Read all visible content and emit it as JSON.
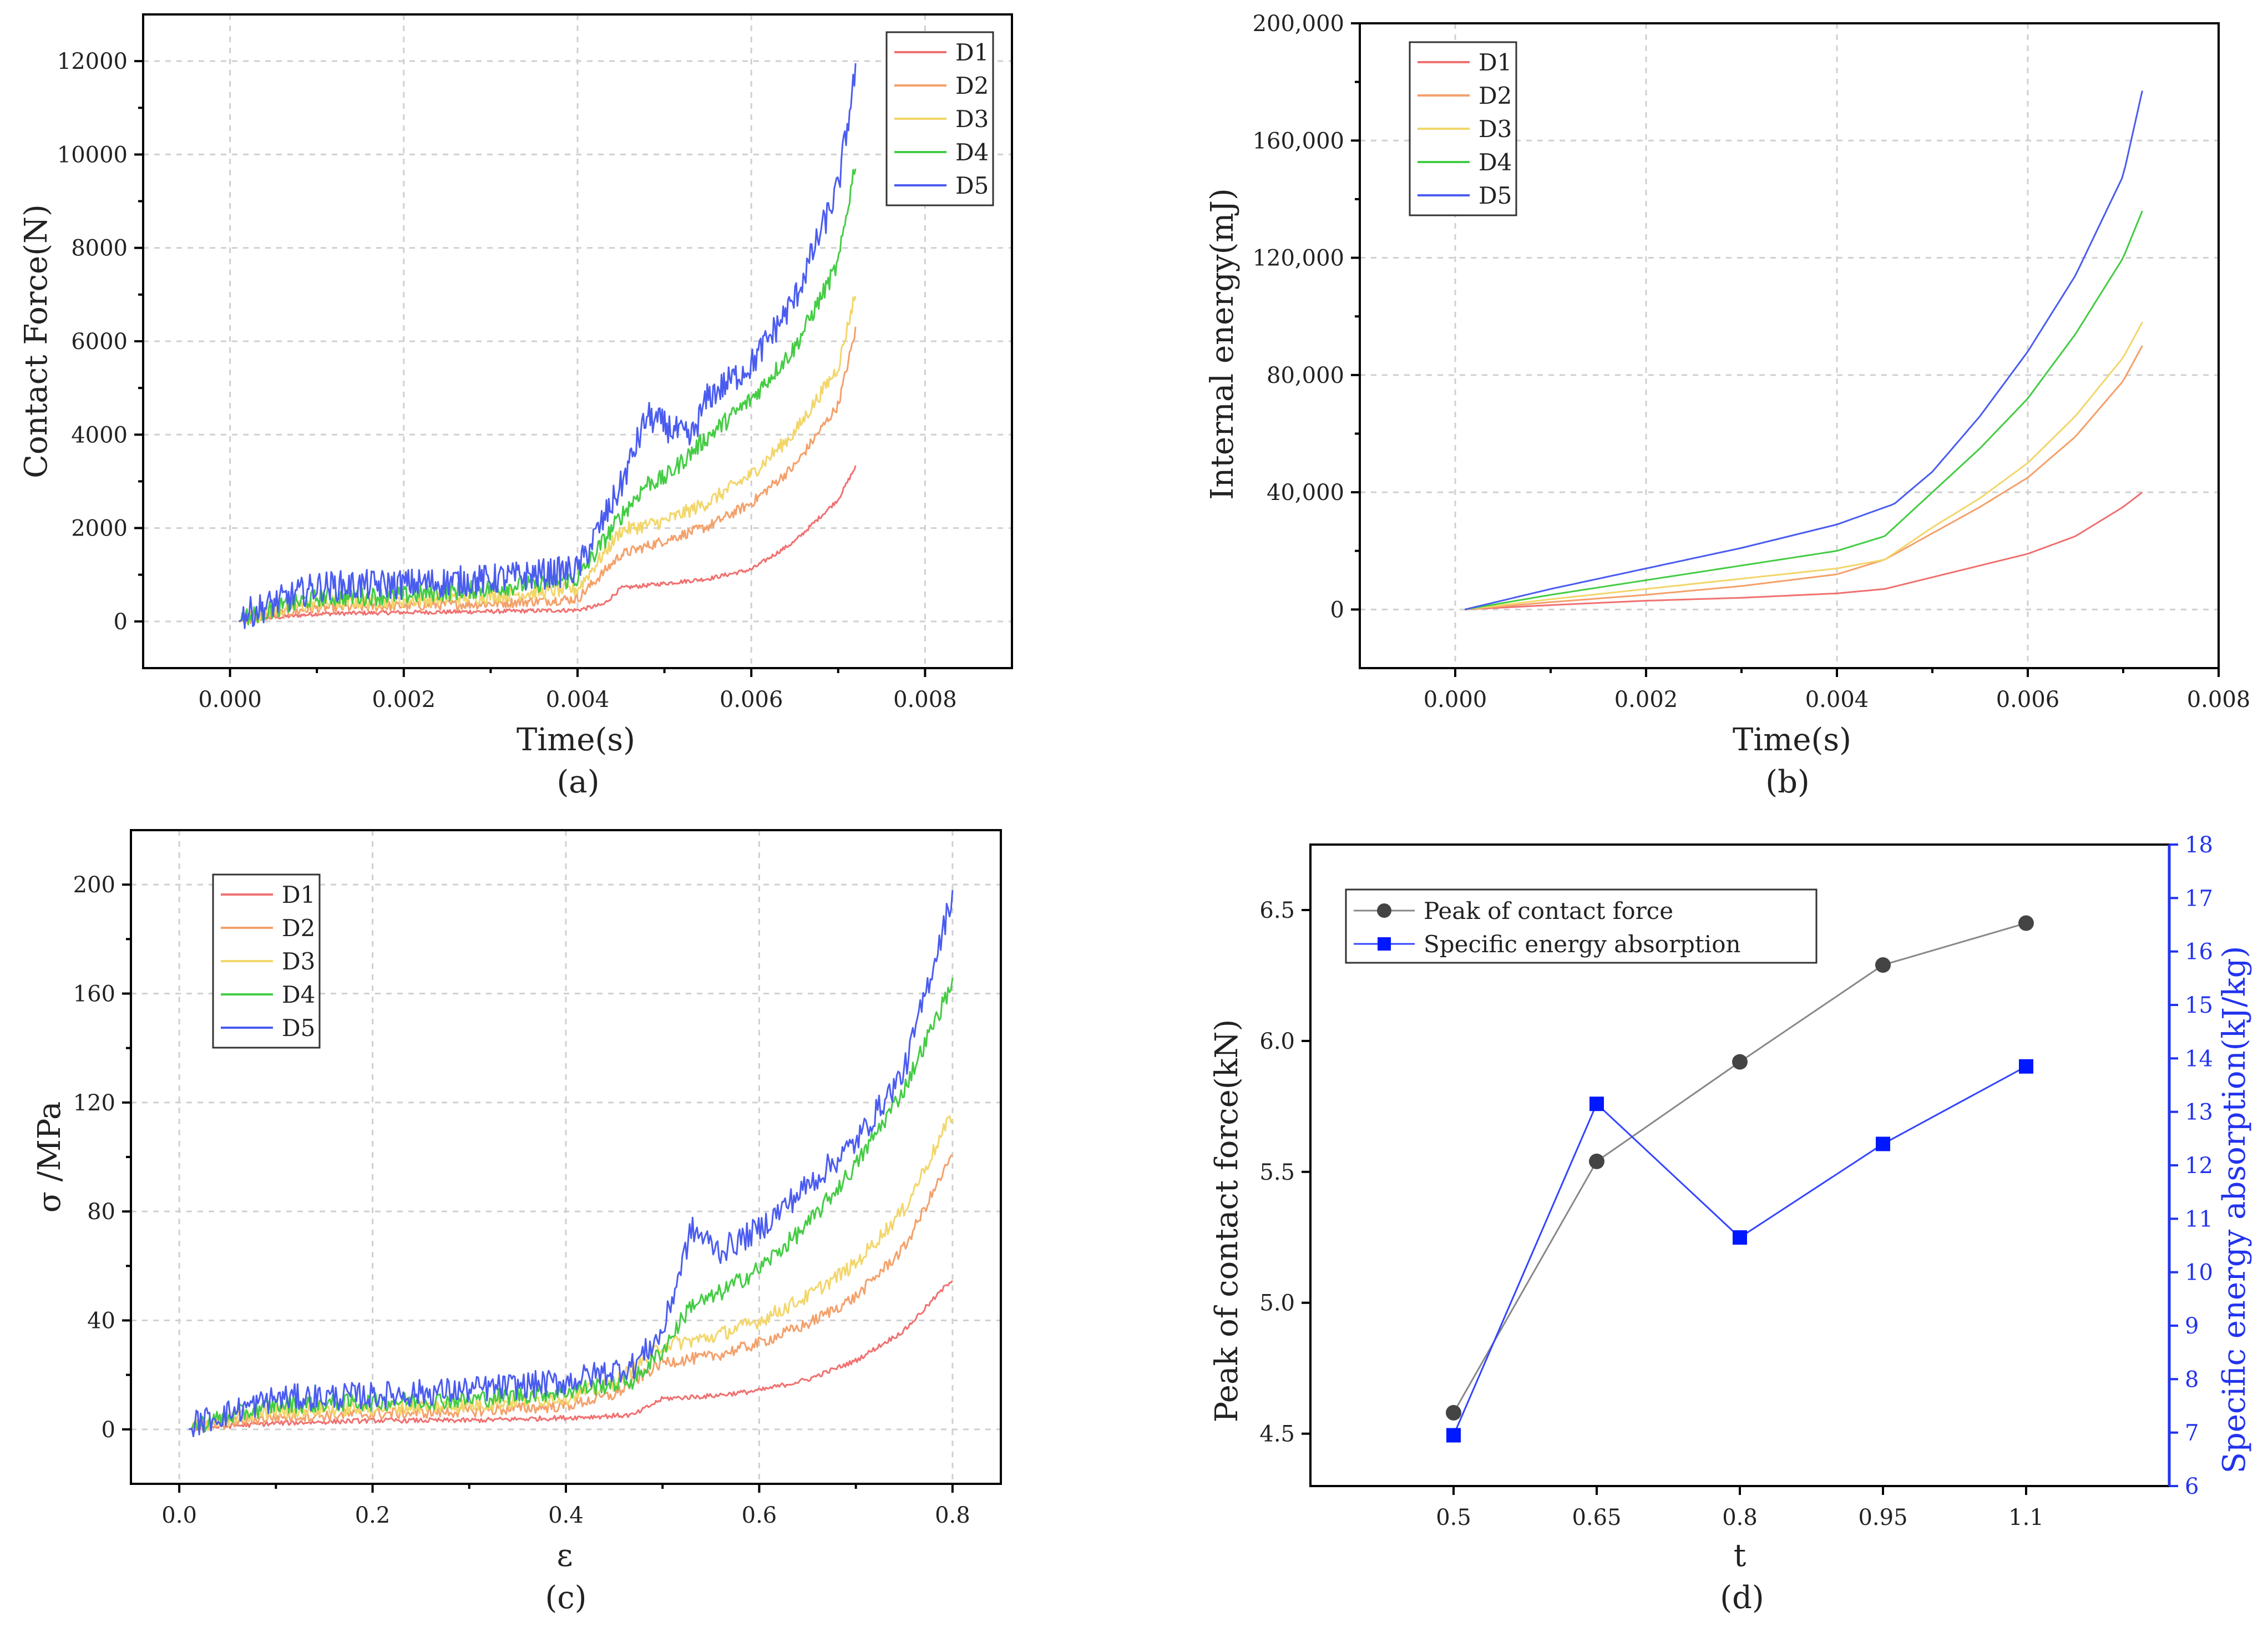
{
  "chart_data": [
    {
      "id": "a",
      "type": "line",
      "caption": "(a)",
      "xlabel": "Time(s)",
      "ylabel": "Contact Force(N)",
      "xlim": [
        -0.001,
        0.009
      ],
      "ylim": [
        -1000,
        13000
      ],
      "xticks": [
        0.0,
        0.002,
        0.004,
        0.006,
        0.008
      ],
      "xtick_labels": [
        "0.000",
        "0.002",
        "0.004",
        "0.006",
        "0.008"
      ],
      "yticks": [
        0,
        2000,
        4000,
        6000,
        8000,
        10000,
        12000
      ],
      "ytick_labels": [
        "0",
        "2000",
        "4000",
        "6000",
        "8000",
        "10000",
        "12000"
      ],
      "legend_position": "top-right",
      "series": [
        {
          "name": "D1",
          "color": "#f07070",
          "x": [
            0.0001,
            0.001,
            0.002,
            0.003,
            0.004,
            0.0043,
            0.0045,
            0.005,
            0.0055,
            0.006,
            0.0065,
            0.007,
            0.0072
          ],
          "y": [
            0,
            150,
            180,
            200,
            230,
            350,
            700,
            800,
            900,
            1100,
            1700,
            2600,
            3300
          ],
          "noise": 40
        },
        {
          "name": "D2",
          "color": "#f4a06a",
          "x": [
            0.0001,
            0.001,
            0.002,
            0.003,
            0.004,
            0.0045,
            0.005,
            0.0055,
            0.006,
            0.0065,
            0.007,
            0.0072
          ],
          "y": [
            0,
            250,
            300,
            350,
            450,
            1400,
            1700,
            2000,
            2500,
            3300,
            4600,
            6200
          ],
          "noise": 100
        },
        {
          "name": "D3",
          "color": "#f2d66a",
          "x": [
            0.0001,
            0.001,
            0.002,
            0.003,
            0.004,
            0.0045,
            0.005,
            0.0055,
            0.006,
            0.0065,
            0.007,
            0.0072
          ],
          "y": [
            0,
            350,
            400,
            500,
            650,
            1900,
            2100,
            2500,
            3100,
            4000,
            5400,
            7000
          ],
          "noise": 140
        },
        {
          "name": "D4",
          "color": "#44cc44",
          "x": [
            0.0001,
            0.001,
            0.002,
            0.003,
            0.004,
            0.0045,
            0.0048,
            0.005,
            0.0055,
            0.006,
            0.0065,
            0.007,
            0.0072
          ],
          "y": [
            0,
            450,
            500,
            650,
            850,
            2200,
            2900,
            3000,
            3900,
            4700,
            5800,
            7600,
            9800
          ],
          "noise": 180
        },
        {
          "name": "D5",
          "color": "#4a5cf0",
          "x": [
            0.0001,
            0.001,
            0.002,
            0.003,
            0.004,
            0.0045,
            0.0048,
            0.005,
            0.0053,
            0.0055,
            0.006,
            0.0065,
            0.007,
            0.0072
          ],
          "y": [
            0,
            650,
            700,
            800,
            1000,
            2800,
            4300,
            4100,
            3800,
            4700,
            5400,
            6800,
            9200,
            11700
          ],
          "noise": 300
        }
      ]
    },
    {
      "id": "b",
      "type": "line",
      "caption": "(b)",
      "xlabel": "Time(s)",
      "ylabel": "Internal energy(mJ)",
      "xlim": [
        -0.001,
        0.008
      ],
      "ylim": [
        -20000,
        200000
      ],
      "xticks": [
        0.0,
        0.002,
        0.004,
        0.006,
        0.008
      ],
      "xtick_labels": [
        "0.000",
        "0.002",
        "0.004",
        "0.006",
        "0.008"
      ],
      "yticks": [
        0,
        40000,
        80000,
        120000,
        160000,
        200000
      ],
      "ytick_labels": [
        "0",
        "40,000",
        "80,000",
        "120,000",
        "160,000",
        "200,000"
      ],
      "legend_position": "top-left",
      "series": [
        {
          "name": "D1",
          "color": "#f07070",
          "x": [
            0.0001,
            0.001,
            0.002,
            0.003,
            0.004,
            0.0045,
            0.005,
            0.0055,
            0.006,
            0.0065,
            0.007,
            0.0072
          ],
          "y": [
            0,
            1500,
            3000,
            4000,
            5500,
            7000,
            11000,
            15000,
            19000,
            25000,
            35000,
            40000
          ]
        },
        {
          "name": "D2",
          "color": "#f4a06a",
          "x": [
            0.0001,
            0.001,
            0.002,
            0.003,
            0.004,
            0.0045,
            0.005,
            0.0055,
            0.006,
            0.0065,
            0.007,
            0.0072
          ],
          "y": [
            0,
            2500,
            5000,
            8000,
            12000,
            17000,
            26000,
            35000,
            45000,
            59000,
            78000,
            90000
          ]
        },
        {
          "name": "D3",
          "color": "#f2d66a",
          "x": [
            0.0001,
            0.001,
            0.002,
            0.003,
            0.004,
            0.0045,
            0.005,
            0.0055,
            0.006,
            0.0065,
            0.007,
            0.0072
          ],
          "y": [
            0,
            3500,
            7000,
            10500,
            14000,
            17000,
            28000,
            38000,
            50000,
            66000,
            86000,
            98000
          ]
        },
        {
          "name": "D4",
          "color": "#44cc44",
          "x": [
            0.0001,
            0.001,
            0.002,
            0.003,
            0.004,
            0.0045,
            0.005,
            0.0055,
            0.006,
            0.0065,
            0.007,
            0.0072
          ],
          "y": [
            0,
            5000,
            10000,
            15000,
            20000,
            25000,
            40000,
            55000,
            72000,
            94000,
            120000,
            136000
          ]
        },
        {
          "name": "D5",
          "color": "#4a5cf0",
          "x": [
            0.0001,
            0.001,
            0.002,
            0.003,
            0.004,
            0.0046,
            0.005,
            0.0055,
            0.006,
            0.0065,
            0.007,
            0.0072
          ],
          "y": [
            0,
            7000,
            14000,
            21000,
            29000,
            36000,
            47000,
            66000,
            88000,
            114000,
            148000,
            177000
          ]
        }
      ]
    },
    {
      "id": "c",
      "type": "line",
      "caption": "(c)",
      "xlabel": "ε",
      "ylabel": "σ /MPa",
      "xlim": [
        -0.05,
        0.85
      ],
      "ylim": [
        -20,
        220
      ],
      "xticks": [
        0.0,
        0.2,
        0.4,
        0.6,
        0.8
      ],
      "xtick_labels": [
        "0.0",
        "0.2",
        "0.4",
        "0.6",
        "0.8"
      ],
      "yticks": [
        0,
        40,
        80,
        120,
        160,
        200
      ],
      "ytick_labels": [
        "0",
        "40",
        "80",
        "120",
        "160",
        "200"
      ],
      "legend_position": "top-left",
      "series": [
        {
          "name": "D1",
          "color": "#f07070",
          "x": [
            0.01,
            0.1,
            0.2,
            0.3,
            0.4,
            0.47,
            0.5,
            0.55,
            0.6,
            0.65,
            0.7,
            0.75,
            0.8
          ],
          "y": [
            0,
            2,
            3,
            3,
            4,
            5,
            11,
            12,
            14,
            18,
            25,
            36,
            55
          ],
          "noise": 0.8
        },
        {
          "name": "D2",
          "color": "#f4a06a",
          "x": [
            0.01,
            0.1,
            0.2,
            0.3,
            0.4,
            0.45,
            0.5,
            0.55,
            0.6,
            0.65,
            0.7,
            0.75,
            0.8
          ],
          "y": [
            0,
            4,
            5,
            6,
            8,
            12,
            24,
            26,
            31,
            38,
            48,
            66,
            100
          ],
          "noise": 2
        },
        {
          "name": "D3",
          "color": "#f2d66a",
          "x": [
            0.01,
            0.1,
            0.2,
            0.3,
            0.4,
            0.45,
            0.5,
            0.55,
            0.6,
            0.65,
            0.7,
            0.75,
            0.8
          ],
          "y": [
            0,
            6,
            7,
            8,
            11,
            16,
            30,
            33,
            39,
            48,
            60,
            80,
            115
          ],
          "noise": 2.5
        },
        {
          "name": "D4",
          "color": "#44cc44",
          "x": [
            0.01,
            0.1,
            0.2,
            0.3,
            0.4,
            0.47,
            0.5,
            0.53,
            0.55,
            0.6,
            0.65,
            0.7,
            0.75,
            0.8
          ],
          "y": [
            0,
            8,
            9,
            10,
            13,
            17,
            28,
            45,
            47,
            58,
            74,
            96,
            124,
            163
          ],
          "noise": 3
        },
        {
          "name": "D5",
          "color": "#4a5cf0",
          "x": [
            0.01,
            0.1,
            0.2,
            0.3,
            0.4,
            0.47,
            0.5,
            0.53,
            0.56,
            0.6,
            0.65,
            0.7,
            0.75,
            0.8
          ],
          "y": [
            0,
            10,
            11,
            13,
            16,
            22,
            34,
            72,
            64,
            72,
            88,
            104,
            130,
            195
          ],
          "noise": 4.5
        }
      ]
    },
    {
      "id": "d",
      "type": "line",
      "caption": "(d)",
      "xlabel": "t",
      "ylabel": "Peak of contact force(kN)",
      "ylabel_right": "Specific energy absorption(kJ/kg)",
      "xcategories": [
        "0.5",
        "0.65",
        "0.8",
        "0.95",
        "1.1"
      ],
      "ylim": [
        4.3,
        6.75
      ],
      "yticks": [
        4.5,
        5.0,
        5.5,
        6.0,
        6.5
      ],
      "ytick_labels": [
        "4.5",
        "5.0",
        "5.5",
        "6.0",
        "6.5"
      ],
      "ylim_right": [
        6,
        18
      ],
      "yticks_right": [
        6,
        7,
        8,
        9,
        10,
        11,
        12,
        13,
        14,
        15,
        16,
        17,
        18
      ],
      "ytick_labels_right": [
        "6",
        "7",
        "8",
        "9",
        "10",
        "11",
        "12",
        "13",
        "14",
        "15",
        "16",
        "17",
        "18"
      ],
      "right_axis_color": "#2233ee",
      "legend_position": "top-left",
      "series": [
        {
          "name": "Peak of contact force",
          "color": "#888888",
          "marker": "circle",
          "marker_color": "#444444",
          "axis": "left",
          "values": [
            4.58,
            5.54,
            5.92,
            6.29,
            6.45
          ]
        },
        {
          "name": "Specific energy absorption",
          "color": "#3344ff",
          "marker": "square",
          "marker_color": "#0018ff",
          "axis": "right",
          "values": [
            6.95,
            13.15,
            10.65,
            12.4,
            13.85
          ]
        }
      ]
    }
  ]
}
